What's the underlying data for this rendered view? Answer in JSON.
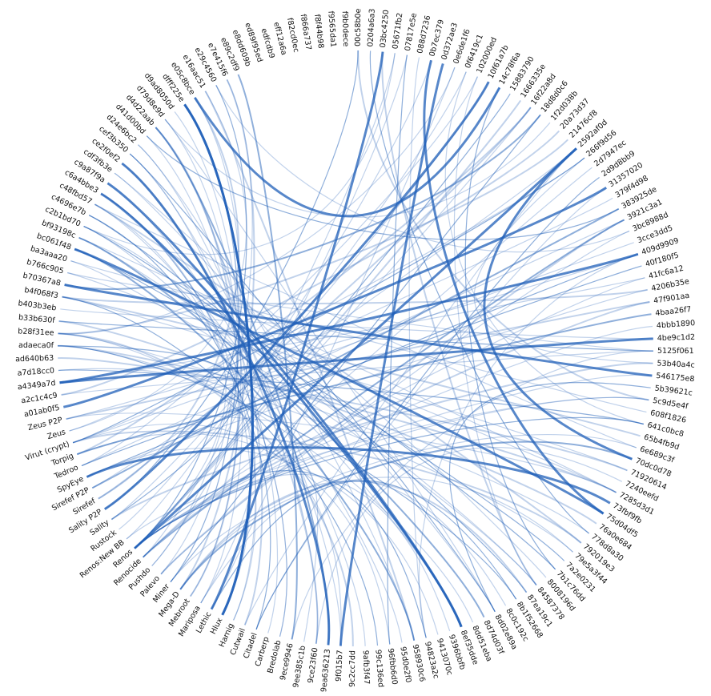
{
  "diagram": {
    "type": "hierarchical-edge-bundling",
    "edge_color": "#1f5fb8",
    "background": "#ffffff",
    "nodes": [
      "00c58b0e",
      "0204a6a3",
      "03bc4250",
      "05671fb2",
      "07817e5e",
      "088d7236",
      "0b7ec379",
      "0d372ae3",
      "0e6de1f6",
      "0f6419c1",
      "102000ed",
      "10f61a7b",
      "14c78f6a",
      "15883790",
      "1666335e",
      "16f22a8d",
      "18d8d0c6",
      "1f2d038b",
      "20a73d37",
      "21476cf8",
      "2592af0d",
      "266f9d56",
      "2d7947ec",
      "2d9d8bb9",
      "31357020",
      "379f4d98",
      "383925de",
      "3921c3a1",
      "3bc8988d",
      "3cce3dd5",
      "409d9909",
      "40f180f5",
      "41fc6a12",
      "4206b35e",
      "47f901aa",
      "4baa26f7",
      "4bbb1890",
      "4be9c1d2",
      "5125f061",
      "53b40a4c",
      "546175e8",
      "5b39621c",
      "5c9d5e4f",
      "608f1826",
      "641c0bc8",
      "65b4fb9d",
      "6e689c3f",
      "70dc0d78",
      "71920614",
      "7240eefd",
      "7285d3d1",
      "73fbf9fb",
      "75d04df5",
      "76a0e684",
      "778d8a30",
      "792019e3",
      "79e5a3f44",
      "7a2e0231",
      "7b1c76dd",
      "8008196d",
      "84587378",
      "87ea19c1",
      "8b1f52668",
      "8c0c192c",
      "8d02e89a",
      "8d74d03f",
      "8dd51eba",
      "8ef35dde",
      "9396bbfb",
      "9413070c",
      "94823a2c",
      "958930c6",
      "95d0e2f0",
      "96fbb6d0",
      "99c136ed",
      "9afb3f47",
      "9c2cc7dd",
      "9f015b7",
      "9ea636213",
      "9ce23f60",
      "9ee385c1b",
      "9ece9946",
      "Bredolab",
      "Carberp",
      "Citadel",
      "Cutwail",
      "Harnig",
      "Hlux",
      "Lethic",
      "Mariposa",
      "Mebroot",
      "Mega-D",
      "Miner",
      "Palevo",
      "Pushdo",
      "Renocide",
      "Renos",
      "Renos:New BB",
      "Rustock",
      "Sality",
      "Sality P2P",
      "Sirefef",
      "Sirefef P2P",
      "SpyEye",
      "Tedroo",
      "Torpig",
      "Virut (crypt)",
      "Zeus",
      "Zeus P2P",
      "a01ab0f5",
      "a2c1c4c9",
      "a4349a7d",
      "a7d18cc0",
      "ad640b63",
      "adaeca0f",
      "b28f31ee",
      "b33b630f",
      "b403b3eb",
      "b4f068f3",
      "b70367a8",
      "b766c905",
      "ba3aaa20",
      "bc061f48",
      "bf93198c",
      "c2b1bd70",
      "c4696e7b",
      "c48fbd57",
      "c6a4bbe3",
      "c9a87f9a",
      "cdf3fb3e",
      "ce2f0ef2",
      "cef3b350",
      "d24e6bc2",
      "d41d00bd",
      "d4d22aab",
      "d79d8e9d",
      "d9ad8050d",
      "dfff225e",
      "e05c8bce",
      "e16aac51",
      "e29c4560",
      "e7e415f6",
      "e89c2df9",
      "e8dd609b",
      "ed89f95ed",
      "edfcdb9",
      "eff12a6a",
      "f82cd0ec",
      "f866a737",
      "f8f44b98",
      "f9565da1",
      "f9b0dece"
    ],
    "edges": [
      [
        6,
        52
      ],
      [
        9,
        44
      ],
      [
        10,
        104
      ],
      [
        12,
        58
      ],
      [
        14,
        96
      ],
      [
        15,
        96
      ],
      [
        16,
        92
      ],
      [
        17,
        135
      ],
      [
        18,
        110
      ],
      [
        20,
        47
      ],
      [
        21,
        39
      ],
      [
        24,
        84
      ],
      [
        26,
        102
      ],
      [
        28,
        93
      ],
      [
        29,
        106
      ],
      [
        31,
        104
      ],
      [
        34,
        96
      ],
      [
        36,
        96
      ],
      [
        37,
        111
      ],
      [
        38,
        120
      ],
      [
        39,
        99
      ],
      [
        41,
        64
      ],
      [
        42,
        97
      ],
      [
        46,
        126
      ],
      [
        47,
        91
      ],
      [
        49,
        79
      ],
      [
        50,
        108
      ],
      [
        51,
        103
      ],
      [
        53,
        116
      ],
      [
        56,
        91
      ],
      [
        57,
        122
      ],
      [
        60,
        123
      ],
      [
        61,
        91
      ],
      [
        62,
        114
      ],
      [
        63,
        89
      ],
      [
        66,
        115
      ],
      [
        67,
        127
      ],
      [
        68,
        95
      ],
      [
        69,
        103
      ],
      [
        70,
        96
      ],
      [
        71,
        139
      ],
      [
        73,
        105
      ],
      [
        74,
        118
      ],
      [
        75,
        128
      ],
      [
        76,
        115
      ],
      [
        78,
        130
      ],
      [
        79,
        132
      ],
      [
        80,
        95
      ],
      [
        81,
        142
      ],
      [
        82,
        127
      ],
      [
        83,
        131
      ],
      [
        84,
        125
      ],
      [
        85,
        134
      ],
      [
        86,
        127
      ],
      [
        88,
        2
      ],
      [
        89,
        112
      ],
      [
        90,
        134
      ],
      [
        92,
        137
      ],
      [
        93,
        138
      ],
      [
        94,
        4
      ],
      [
        95,
        27
      ],
      [
        97,
        6
      ],
      [
        98,
        9
      ],
      [
        100,
        11
      ],
      [
        101,
        15
      ],
      [
        102,
        20
      ],
      [
        103,
        30
      ],
      [
        104,
        27
      ],
      [
        105,
        15
      ],
      [
        106,
        21
      ],
      [
        107,
        21
      ],
      [
        108,
        30
      ],
      [
        109,
        24
      ],
      [
        110,
        38
      ],
      [
        111,
        32
      ],
      [
        112,
        44
      ],
      [
        113,
        48
      ],
      [
        114,
        56
      ],
      [
        116,
        38
      ],
      [
        117,
        37
      ],
      [
        118,
        33
      ],
      [
        119,
        40
      ],
      [
        120,
        50
      ],
      [
        121,
        60
      ],
      [
        122,
        71
      ],
      [
        123,
        50
      ],
      [
        124,
        67
      ],
      [
        125,
        61
      ],
      [
        126,
        55
      ],
      [
        127,
        82
      ],
      [
        128,
        67
      ],
      [
        129,
        64
      ],
      [
        130,
        79
      ],
      [
        131,
        64
      ],
      [
        132,
        71
      ],
      [
        133,
        86
      ],
      [
        134,
        78
      ],
      [
        135,
        89
      ],
      [
        136,
        90
      ],
      [
        137,
        87
      ],
      [
        138,
        101
      ],
      [
        139,
        107
      ],
      [
        140,
        96
      ],
      [
        141,
        94
      ],
      [
        0,
        42
      ],
      [
        1,
        54
      ],
      [
        3,
        95
      ],
      [
        5,
        70
      ],
      [
        7,
        77
      ],
      [
        8,
        88
      ],
      [
        11,
        99
      ],
      [
        13,
        96
      ],
      [
        19,
        115
      ],
      [
        22,
        95
      ],
      [
        23,
        84
      ],
      [
        25,
        106
      ],
      [
        27,
        93
      ],
      [
        30,
        111
      ],
      [
        32,
        96
      ],
      [
        33,
        103
      ],
      [
        35,
        105
      ],
      [
        40,
        96
      ],
      [
        43,
        121
      ],
      [
        44,
        96
      ],
      [
        45,
        118
      ],
      [
        48,
        118
      ],
      [
        52,
        122
      ],
      [
        54,
        115
      ],
      [
        55,
        106
      ],
      [
        58,
        124
      ],
      [
        59,
        129
      ],
      [
        64,
        135
      ],
      [
        65,
        123
      ],
      [
        72,
        126
      ],
      [
        77,
        131
      ],
      [
        87,
        137
      ],
      [
        91,
        141
      ],
      [
        96,
        124
      ],
      [
        99,
        114
      ],
      [
        115,
        8
      ],
      [
        2,
        60
      ],
      [
        4,
        73
      ],
      [
        85,
        20
      ],
      [
        106,
        77
      ],
      [
        96,
        20
      ],
      [
        96,
        42
      ],
      [
        126,
        87
      ],
      [
        88,
        62
      ],
      [
        108,
        34
      ],
      [
        30,
        70
      ],
      [
        133,
        26
      ],
      [
        10,
        60
      ],
      [
        50,
        114
      ],
      [
        138,
        12
      ],
      [
        28,
        140
      ],
      [
        92,
        46
      ],
      [
        16,
        119
      ],
      [
        81,
        38
      ],
      [
        124,
        3
      ],
      [
        100,
        0
      ]
    ]
  }
}
